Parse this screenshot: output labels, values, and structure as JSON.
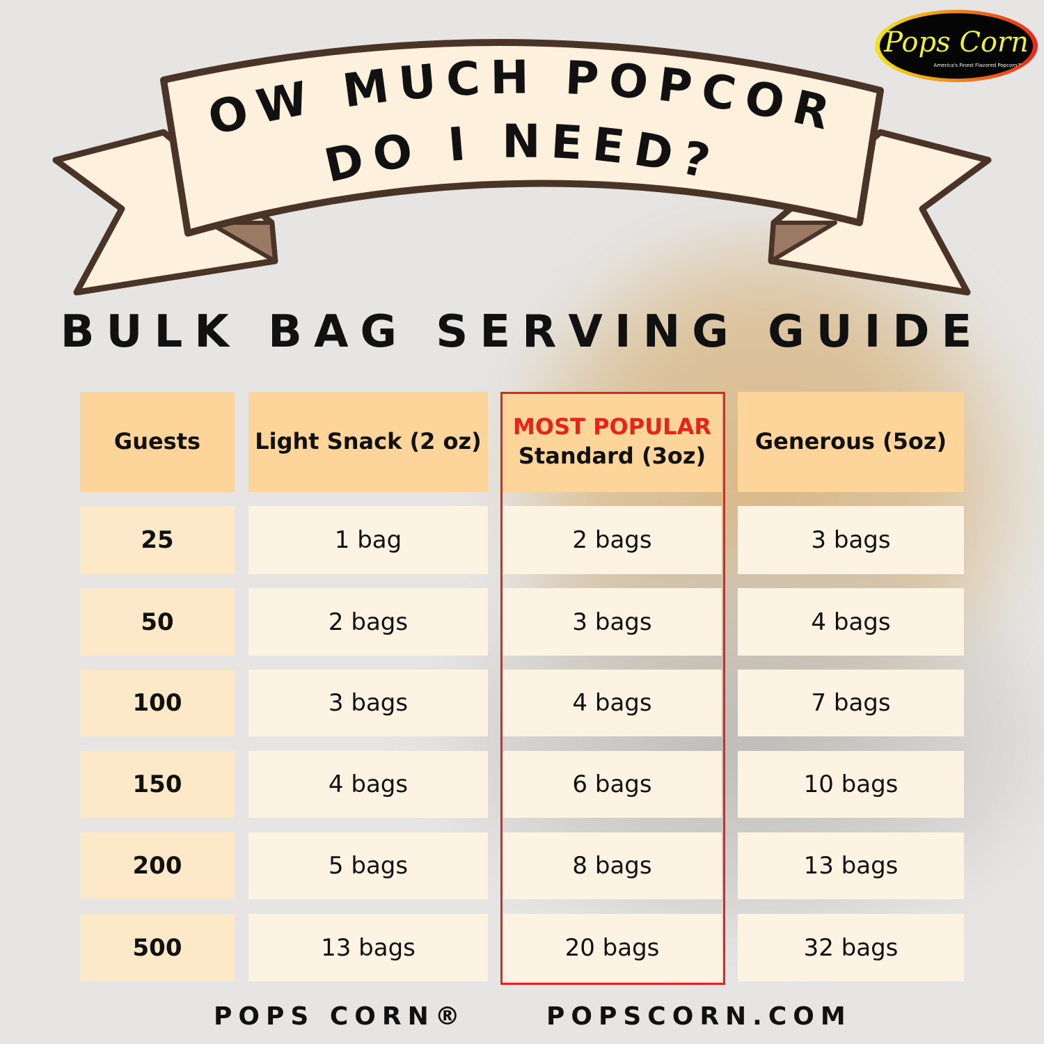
{
  "title": {
    "line1": "HOW MUCH POPCORN",
    "line2": "DO I NEED?"
  },
  "logo": {
    "name": "Pops Corn",
    "tagline": "America's Finest Flavored Popcorn™"
  },
  "subtitle": "BULK BAG SERVING GUIDE",
  "table": {
    "headers": [
      "Guests",
      "Light Snack (2 oz)",
      "Standard (3oz)",
      "Generous (5oz)"
    ],
    "highlight_label": "MOST POPULAR",
    "rows": [
      [
        "25",
        "1 bag",
        "2 bags",
        "3 bags"
      ],
      [
        "50",
        "2 bags",
        "3 bags",
        "4 bags"
      ],
      [
        "100",
        "3 bags",
        "4 bags",
        "7 bags"
      ],
      [
        "150",
        "4 bags",
        "6 bags",
        "10 bags"
      ],
      [
        "200",
        "5 bags",
        "8 bags",
        "13 bags"
      ],
      [
        "500",
        "13 bags",
        "20 bags",
        "32 bags"
      ]
    ]
  },
  "footer": {
    "brand": "POPS CORN®",
    "site": "POPSCORN.COM"
  },
  "colors": {
    "header": "#fdd59a",
    "guest_cell": "#fde8c8",
    "value_cell": "#fdf3e3",
    "highlight": "#e3231d",
    "ribbon": "#fdf0dc",
    "ribbon_outline": "#4a3427"
  }
}
